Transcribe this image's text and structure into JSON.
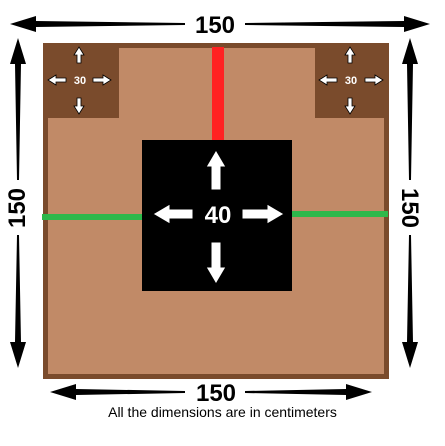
{
  "diagram": {
    "outer_size_label_top": "150",
    "outer_size_label_bottom": "150",
    "outer_size_label_left": "150",
    "outer_size_label_right": "150",
    "corner_square_label_left": "30",
    "corner_square_label_right": "30",
    "center_square_label": "40",
    "caption": "All the dimensions are in centimeters"
  },
  "colors": {
    "floor": "#c18a67",
    "border": "#7a4b2c",
    "corner_square": "#7a4b2c",
    "center_square": "#000000",
    "red_strip": "#ff2222",
    "green_strip": "#2db84b",
    "dimension_arrow": "#000000",
    "hollow_arrow_fill": "#ffffff"
  }
}
